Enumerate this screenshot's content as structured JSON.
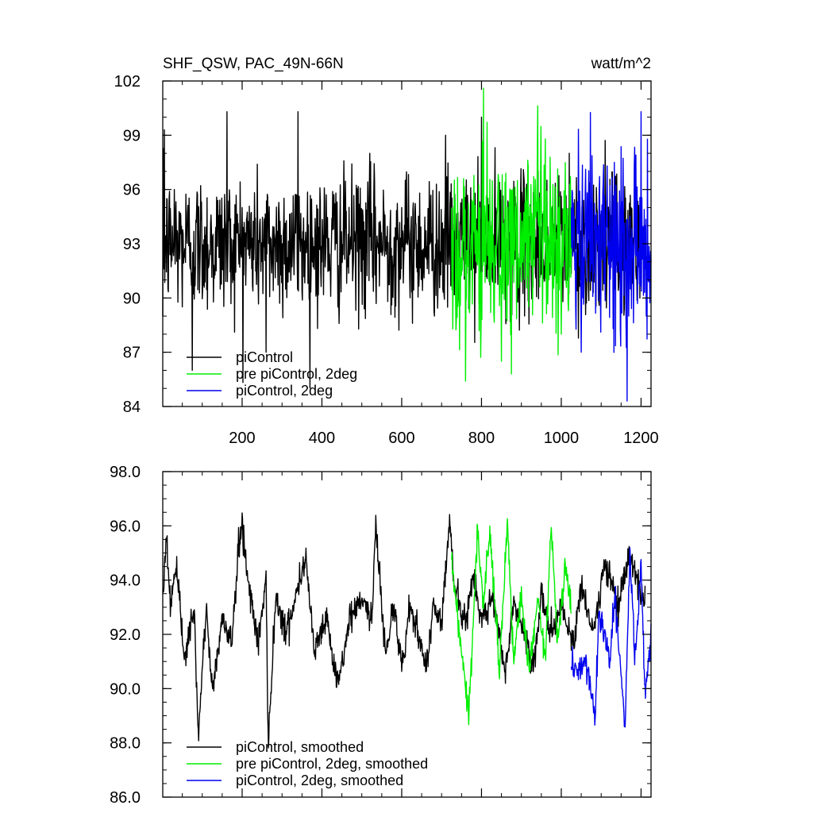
{
  "chart_data": [
    {
      "type": "line",
      "title": "SHF_QSW, PAC_49N-66N",
      "units": "watt/m^2",
      "xlabel": "",
      "ylabel": "",
      "xlim": [
        1,
        1225
      ],
      "ylim": [
        84,
        102
      ],
      "xticks": [
        200,
        400,
        600,
        800,
        1000,
        1200
      ],
      "xtick_labels": [
        "200",
        "400",
        "600",
        "800",
        "1000",
        "1200"
      ],
      "yticks": [
        84,
        87,
        90,
        93,
        96,
        99,
        102
      ],
      "ytick_labels": [
        "84",
        "87",
        "90",
        "93",
        "96",
        "99",
        "102"
      ],
      "legend_position": "bottom-left",
      "series": [
        {
          "name": "piControl",
          "color": "#000000",
          "x_range": [
            1,
            1200
          ],
          "x": [
            1,
            5,
            30,
            75,
            150,
            162,
            200,
            260,
            300,
            340,
            400,
            500,
            520,
            560,
            600,
            700,
            710,
            800,
            830,
            900,
            1020,
            1050,
            1100,
            1150,
            1200
          ],
          "values": [
            89,
            99.3,
            96,
            86,
            93,
            100.3,
            95,
            87,
            93,
            100.3,
            92,
            93,
            98,
            93,
            95,
            92,
            99,
            100,
            93,
            92,
            98,
            91,
            93,
            95,
            94
          ]
        },
        {
          "name": "pre piControl, 2deg",
          "color": "#00ee00",
          "x_range": [
            725,
            1025
          ],
          "x": [
            725,
            760,
            805,
            850,
            875,
            960,
            1000,
            1025
          ],
          "values": [
            95,
            85.4,
            101.6,
            86.5,
            85.8,
            98.8,
            88,
            93
          ]
        },
        {
          "name": "piControl, 2deg",
          "color": "#0000ee",
          "x_range": [
            1025,
            1225
          ],
          "x": [
            1025,
            1050,
            1095,
            1115,
            1165,
            1200,
            1225
          ],
          "values": [
            95,
            87,
            96,
            97.3,
            84.3,
            100.3,
            92
          ]
        }
      ]
    },
    {
      "type": "line",
      "title": "",
      "xlabel": "",
      "ylabel": "",
      "xlim": [
        1,
        1225
      ],
      "ylim": [
        86,
        98
      ],
      "xticks": [
        200,
        400,
        600,
        800,
        1000,
        1200
      ],
      "yticks": [
        86,
        88,
        90,
        92,
        94,
        96,
        98
      ],
      "ytick_labels": [
        "86.0",
        "88.0",
        "90.0",
        "92.0",
        "94.0",
        "96.0",
        "98.0"
      ],
      "legend_position": "bottom-left",
      "series": [
        {
          "name": "piControl, smoothed",
          "color": "#000000",
          "x": [
            1,
            10,
            20,
            35,
            55,
            80,
            90,
            110,
            125,
            150,
            175,
            190,
            200,
            215,
            240,
            260,
            265,
            285,
            310,
            330,
            360,
            380,
            410,
            440,
            470,
            500,
            525,
            535,
            560,
            580,
            600,
            620,
            640,
            660,
            680,
            700,
            720,
            730,
            740,
            760,
            780,
            800,
            830,
            860,
            880,
            900,
            930,
            950,
            970,
            1000,
            1030,
            1050,
            1080,
            1110,
            1140,
            1170,
            1200,
            1210
          ],
          "values": [
            93.5,
            95.6,
            93.2,
            94.4,
            91.2,
            92.8,
            88.1,
            93.1,
            89.9,
            92.5,
            91.8,
            95,
            96.1,
            94,
            91.7,
            94,
            88.1,
            93.5,
            92,
            93.2,
            94.9,
            91.5,
            92.6,
            90.0,
            92.6,
            93.4,
            92.5,
            96.0,
            91.2,
            93.2,
            90.7,
            93.0,
            92.1,
            90.7,
            93.1,
            92.5,
            96.3,
            94.0,
            93.4,
            92.3,
            94.2,
            92.5,
            93.4,
            90.6,
            93.2,
            92.4,
            90.7,
            93.5,
            92.0,
            93.0,
            91.6,
            93.8,
            92.0,
            94.8,
            93.0,
            94.9,
            93.5,
            93.2
          ]
        },
        {
          "name": "pre piControl, 2deg, smoothed",
          "color": "#00ee00",
          "x": [
            725,
            745,
            768,
            790,
            805,
            820,
            845,
            865,
            880,
            900,
            920,
            940,
            960,
            975,
            990,
            1000,
            1010,
            1025
          ],
          "values": [
            94.6,
            92.0,
            89.2,
            95.6,
            93.0,
            96.0,
            90.7,
            96.2,
            91.0,
            93.4,
            90.5,
            93.3,
            91.2,
            96.1,
            91.8,
            93.0,
            94.5,
            92.8
          ]
        },
        {
          "name": "piControl, 2deg, smoothed",
          "color": "#0000ee",
          "x": [
            1025,
            1040,
            1060,
            1085,
            1095,
            1120,
            1135,
            1160,
            1172,
            1185,
            1200,
            1210,
            1225
          ],
          "values": [
            91.0,
            90.6,
            91.2,
            88.9,
            92.9,
            91.0,
            93.4,
            88.6,
            95.0,
            91.0,
            94.7,
            89.8,
            91.8
          ]
        }
      ]
    }
  ]
}
